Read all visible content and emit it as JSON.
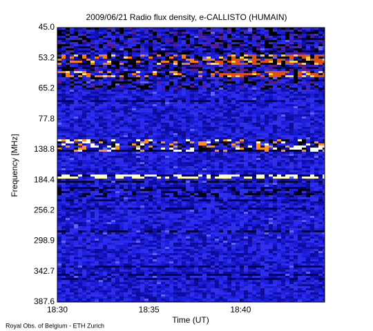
{
  "chart_data": {
    "type": "spectrogram",
    "title": "2009/06/21  Radio flux density, e-CALLISTO (HUMAIN)",
    "xlabel": "Time (UT)",
    "ylabel": "Frequency [MHz]",
    "credit": "Royal Obs. of Belgium - ETH Zurich",
    "xlim": [
      "18:30:00",
      "18:44:35"
    ],
    "xticks": [
      "18:30",
      "18:35",
      "18:40"
    ],
    "ycategories": [
      "45.0",
      "53.2",
      "65.2",
      "77.8",
      "138.8",
      "184.4",
      "256.2",
      "298.9",
      "342.7",
      "387.6"
    ]
  }
}
